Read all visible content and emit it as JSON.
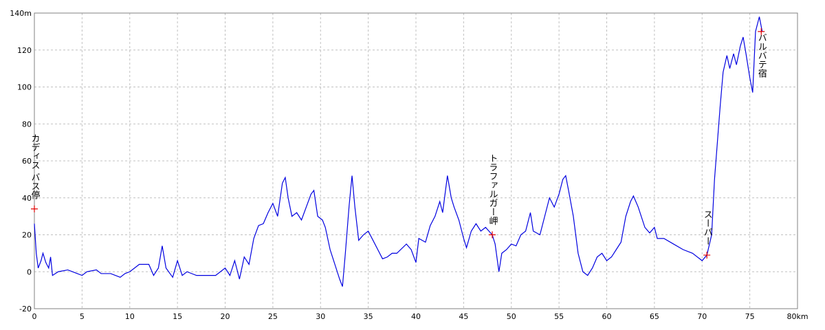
{
  "chart_data": {
    "type": "line",
    "color": "#0000e0",
    "marker_color": "#e00000",
    "label_color": "#008000",
    "grid": true,
    "xlim": [
      0,
      80
    ],
    "ylim": [
      -20,
      140
    ],
    "xticks": [
      0,
      5,
      10,
      15,
      20,
      25,
      30,
      35,
      40,
      45,
      50,
      55,
      60,
      65,
      70,
      75,
      {
        "value": 80,
        "label": "80km"
      }
    ],
    "yticks": [
      -20,
      0,
      20,
      40,
      60,
      80,
      100,
      120,
      {
        "value": 140,
        "label": "140m"
      }
    ],
    "x": [
      0,
      0.2,
      0.4,
      0.7,
      0.9,
      1.2,
      1.5,
      1.7,
      1.9,
      2.5,
      3.5,
      4.5,
      5,
      5.5,
      6.5,
      7,
      8,
      9,
      9.5,
      10,
      10.5,
      11,
      12,
      12.5,
      13,
      13.4,
      13.8,
      14.5,
      15,
      15.5,
      16,
      17,
      18,
      19,
      20,
      20.5,
      21,
      21.5,
      22,
      22.5,
      23,
      23.5,
      24,
      24.5,
      25,
      25.5,
      26,
      26.3,
      26.6,
      27,
      27.5,
      28,
      28.5,
      29,
      29.3,
      29.7,
      30.2,
      30.5,
      31,
      31.5,
      32,
      32.3,
      32.6,
      33,
      33.3,
      33.6,
      34,
      34.5,
      35,
      35.5,
      36,
      36.5,
      37,
      37.5,
      38,
      39,
      39.5,
      40,
      40.3,
      41,
      41.5,
      42,
      42.5,
      42.8,
      43.3,
      43.7,
      44,
      44.5,
      45,
      45.3,
      45.8,
      46.3,
      46.8,
      47.3,
      48,
      48.3,
      48.7,
      49,
      49.5,
      50,
      50.5,
      51,
      51.5,
      52,
      52.3,
      53,
      53.5,
      54,
      54.5,
      55,
      55.4,
      55.7,
      56,
      56.5,
      57,
      57.5,
      58,
      58.5,
      59,
      59.5,
      60,
      60.5,
      61,
      61.5,
      62,
      62.5,
      62.8,
      63.3,
      64,
      64.5,
      65,
      65.3,
      66,
      67,
      68,
      69,
      70,
      70.5,
      71,
      71.3,
      71.6,
      71.9,
      72.2,
      72.6,
      72.9,
      73.3,
      73.6,
      74,
      74.3,
      74.6,
      75,
      75.3,
      75.6,
      76,
      76.3
    ],
    "values": [
      26,
      10,
      2,
      6,
      10,
      5,
      2,
      8,
      -2,
      0,
      1,
      -1,
      -2,
      0,
      1,
      -1,
      -1,
      -3,
      -1,
      0,
      2,
      4,
      4,
      -2,
      2,
      14,
      2,
      -3,
      6,
      -2,
      0,
      -2,
      -2,
      -2,
      2,
      -2,
      6,
      -4,
      8,
      4,
      18,
      25,
      26,
      32,
      37,
      30,
      48,
      51,
      40,
      30,
      32,
      28,
      35,
      42,
      44,
      30,
      28,
      24,
      12,
      4,
      -4,
      -8,
      10,
      36,
      52,
      35,
      17,
      20,
      22,
      17,
      12,
      7,
      8,
      10,
      10,
      15,
      12,
      5,
      18,
      16,
      25,
      30,
      38,
      32,
      52,
      40,
      35,
      28,
      18,
      13,
      22,
      26,
      22,
      24,
      20,
      15,
      0,
      10,
      12,
      15,
      14,
      20,
      22,
      32,
      22,
      20,
      30,
      40,
      35,
      42,
      50,
      52,
      44,
      30,
      10,
      0,
      -2,
      2,
      8,
      10,
      6,
      8,
      12,
      16,
      30,
      38,
      41,
      35,
      24,
      21,
      24,
      18,
      18,
      15,
      12,
      10,
      6,
      9,
      20,
      50,
      70,
      90,
      108,
      117,
      110,
      118,
      112,
      122,
      127,
      118,
      105,
      97,
      130,
      138,
      130
    ],
    "annotations": [
      {
        "label": "カディス バス停",
        "x": 0,
        "y": 34
      },
      {
        "label": "トラファルガー岬",
        "x": 48,
        "y": 20
      },
      {
        "label": "スーパー",
        "x": 70.5,
        "y": 9
      },
      {
        "label": "バルバテ宿",
        "x": 76.2,
        "y": 130
      }
    ]
  }
}
